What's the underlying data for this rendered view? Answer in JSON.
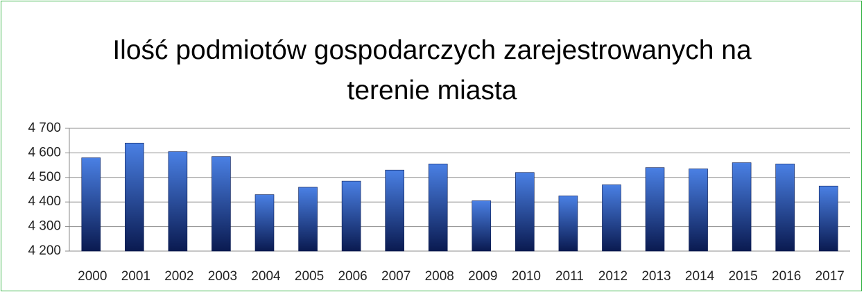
{
  "chart_data": {
    "type": "bar",
    "title": "Ilość podmiotów gospodarczych zarejestrowanych na terenie miasta",
    "categories": [
      "2000",
      "2001",
      "2002",
      "2003",
      "2004",
      "2005",
      "2006",
      "2007",
      "2008",
      "2009",
      "2010",
      "2011",
      "2012",
      "2013",
      "2014",
      "2015",
      "2016",
      "2017"
    ],
    "values": [
      4580,
      4640,
      4605,
      4585,
      4430,
      4460,
      4485,
      4530,
      4555,
      4405,
      4520,
      4425,
      4470,
      4540,
      4535,
      4560,
      4555,
      4465
    ],
    "color": "#4a80e4",
    "ylim": [
      4200,
      4700
    ],
    "yticks": [
      {
        "value": 4200,
        "label": "4 200"
      },
      {
        "value": 4300,
        "label": "4 300"
      },
      {
        "value": 4400,
        "label": "4 400"
      },
      {
        "value": 4500,
        "label": "4 500"
      },
      {
        "value": 4600,
        "label": "4 600"
      },
      {
        "value": 4700,
        "label": "4 700"
      }
    ],
    "grid": true
  }
}
